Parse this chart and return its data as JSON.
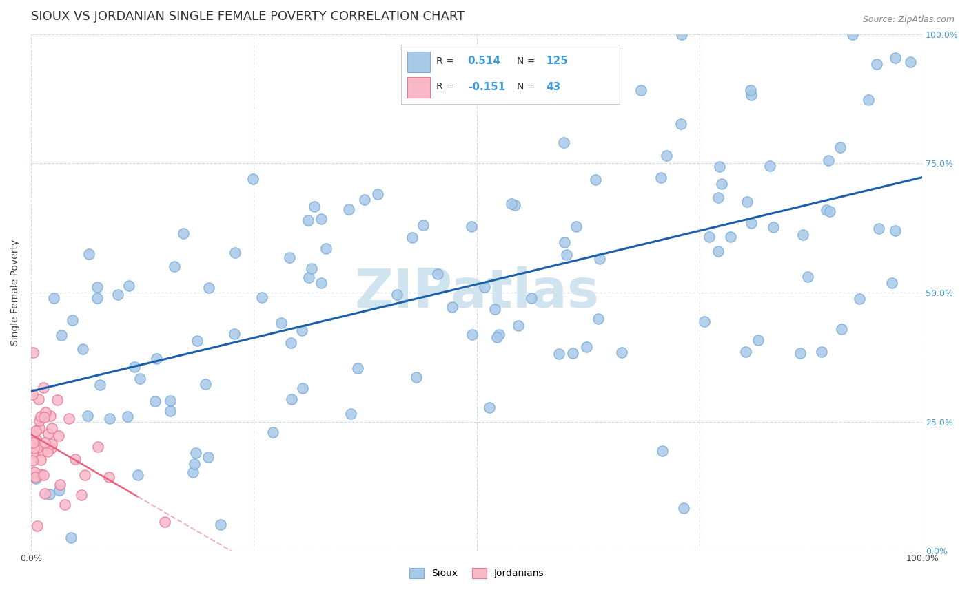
{
  "title": "SIOUX VS JORDANIAN SINGLE FEMALE POVERTY CORRELATION CHART",
  "source_text": "Source: ZipAtlas.com",
  "ylabel": "Single Female Poverty",
  "xlim": [
    0.0,
    1.0
  ],
  "ylim": [
    0.0,
    1.0
  ],
  "xtick_labels": [
    "0.0%",
    "",
    "",
    "",
    "100.0%"
  ],
  "xtick_values": [
    0.0,
    0.25,
    0.5,
    0.75,
    1.0
  ],
  "ytick_values": [
    0.0,
    0.25,
    0.5,
    0.75,
    1.0
  ],
  "right_ytick_labels": [
    "0.0%",
    "25.0%",
    "50.0%",
    "75.0%",
    "100.0%"
  ],
  "sioux_color": "#a8c8e8",
  "sioux_edge": "#7aaddb",
  "jordan_color": "#f8b8c8",
  "jordan_edge": "#e87898",
  "sioux_R": 0.514,
  "sioux_N": 125,
  "jordan_R": -0.151,
  "jordan_N": 43,
  "legend_label_sioux": "Sioux",
  "legend_label_jordan": "Jordanians",
  "watermark": "ZIPatlas",
  "watermark_color": "#d0e4f0",
  "title_fontsize": 13,
  "axis_label_fontsize": 10,
  "tick_fontsize": 9,
  "background_color": "#ffffff",
  "grid_color": "#d0d8e8",
  "sioux_line_color": "#1a5fa8",
  "jordan_line_color": "#e8607a",
  "jordan_line_dash_color": "#f0b0c0"
}
